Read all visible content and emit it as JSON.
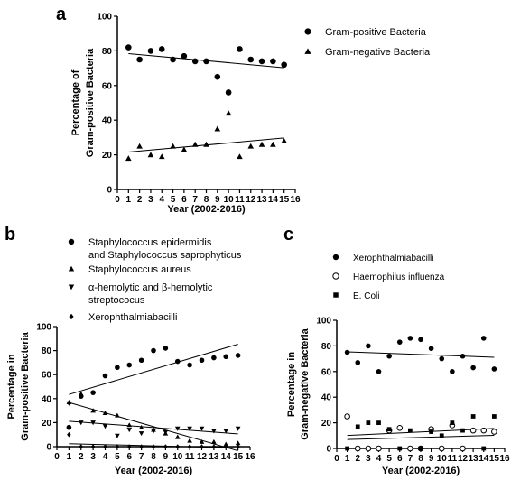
{
  "chart_data": [
    {
      "panel": "a",
      "type": "scatter",
      "xlabel": "Year (2002-2016)",
      "ylabel": [
        "Percentage of",
        "Gram-positive Bacteria"
      ],
      "xlim": [
        0,
        16
      ],
      "ylim": [
        0,
        100
      ],
      "xticks": [
        0,
        1,
        2,
        3,
        4,
        5,
        6,
        7,
        8,
        9,
        10,
        11,
        12,
        13,
        14,
        15,
        16
      ],
      "yticks": [
        0,
        20,
        40,
        60,
        80,
        100
      ],
      "legend_position": "right",
      "trendlines": true,
      "series": [
        {
          "name": "Gram-positive Bacteria",
          "marker": "circle",
          "x": [
            1,
            2,
            3,
            4,
            5,
            6,
            7,
            8,
            9,
            10,
            11,
            12,
            13,
            14,
            15
          ],
          "values": [
            82,
            75,
            80,
            81,
            75,
            77,
            74,
            74,
            65,
            56,
            81,
            75,
            74,
            74,
            72
          ]
        },
        {
          "name": "Gram-negative Bacteria",
          "marker": "triangle",
          "x": [
            1,
            2,
            3,
            4,
            5,
            6,
            7,
            8,
            9,
            10,
            11,
            12,
            13,
            14,
            15
          ],
          "values": [
            18,
            25,
            20,
            19,
            25,
            23,
            26,
            26,
            35,
            44,
            19,
            25,
            26,
            26,
            28
          ]
        }
      ]
    },
    {
      "panel": "b",
      "type": "scatter",
      "xlabel": "Year (2002-2016)",
      "ylabel": [
        "Percentage in",
        "Gram-positive Bacteria"
      ],
      "xlim": [
        0,
        16
      ],
      "ylim": [
        0,
        100
      ],
      "xticks": [
        0,
        1,
        2,
        3,
        4,
        5,
        6,
        7,
        8,
        9,
        10,
        11,
        12,
        13,
        14,
        15,
        16
      ],
      "yticks": [
        0,
        20,
        40,
        60,
        80,
        100
      ],
      "legend_position": "top",
      "trendlines": true,
      "series": [
        {
          "name": [
            "Staphylococcus epidermidis",
            "and Staphylococcus saprophyticus"
          ],
          "marker": "circle",
          "x": [
            1,
            2,
            3,
            4,
            5,
            6,
            7,
            8,
            9,
            10,
            11,
            12,
            13,
            14,
            15
          ],
          "values": [
            16,
            42,
            45,
            59,
            66,
            68,
            72,
            80,
            82,
            71,
            68,
            72,
            74,
            75,
            76
          ]
        },
        {
          "name": [
            "Staphylococcus aureus"
          ],
          "marker": "triangle",
          "x": [
            1,
            2,
            3,
            4,
            5,
            6,
            7,
            8,
            9,
            10,
            11,
            12,
            13,
            14,
            15
          ],
          "values": [
            37,
            44,
            30,
            28,
            26,
            18,
            16,
            14,
            11,
            8,
            5,
            4,
            4,
            2,
            3
          ]
        },
        {
          "name": [
            "α-hemolytic and β-hemolytic",
            "streptococus"
          ],
          "marker": "triangle-down",
          "x": [
            1,
            2,
            3,
            4,
            5,
            6,
            7,
            8,
            9,
            10,
            11,
            12,
            13,
            14,
            15
          ],
          "values": [
            36,
            20,
            20,
            17,
            9,
            14,
            11,
            13,
            12,
            15,
            15,
            15,
            13,
            13,
            15
          ]
        },
        {
          "name": [
            "Xerophthalmiabacilli"
          ],
          "marker": "diamond",
          "x": [
            1,
            2,
            3,
            4,
            5,
            6,
            7,
            8,
            9,
            10,
            11,
            12,
            13,
            14,
            15
          ],
          "values": [
            10,
            0,
            0,
            0,
            0,
            0,
            0,
            0,
            0,
            0,
            0,
            0,
            0,
            0,
            0
          ]
        }
      ]
    },
    {
      "panel": "c",
      "type": "scatter",
      "xlabel": "Year (2002-2016)",
      "ylabel": [
        "Percentage in",
        "Gram-negative Bacteria"
      ],
      "xlim": [
        0,
        16
      ],
      "ylim": [
        0,
        100
      ],
      "xticks": [
        0,
        1,
        2,
        3,
        4,
        5,
        6,
        7,
        8,
        9,
        10,
        11,
        12,
        13,
        14,
        15,
        16
      ],
      "yticks": [
        0,
        20,
        40,
        60,
        80,
        100
      ],
      "legend_position": "top",
      "trendlines": true,
      "series": [
        {
          "name": "Xerophthalmiabacilli",
          "marker": "circle",
          "x": [
            1,
            2,
            3,
            4,
            5,
            6,
            7,
            8,
            9,
            10,
            11,
            12,
            13,
            14,
            15
          ],
          "values": [
            75,
            67,
            80,
            60,
            72,
            83,
            86,
            85,
            78,
            70,
            60,
            72,
            63,
            86,
            62
          ]
        },
        {
          "name": "Haemophilus influenza",
          "marker": "circle-open",
          "x": [
            1,
            2,
            3,
            4,
            5,
            6,
            7,
            8,
            9,
            10,
            11,
            12,
            13,
            14,
            15
          ],
          "values": [
            25,
            0,
            0,
            0,
            14,
            16,
            0,
            0,
            15,
            0,
            18,
            0,
            14,
            14,
            13
          ]
        },
        {
          "name": "E. Coli",
          "marker": "square",
          "x": [
            1,
            2,
            3,
            4,
            5,
            6,
            7,
            8,
            9,
            10,
            11,
            12,
            13,
            14,
            15
          ],
          "values": [
            0,
            17,
            20,
            20,
            15,
            0,
            14,
            0,
            13,
            10,
            20,
            14,
            25,
            0,
            25
          ]
        }
      ]
    }
  ]
}
